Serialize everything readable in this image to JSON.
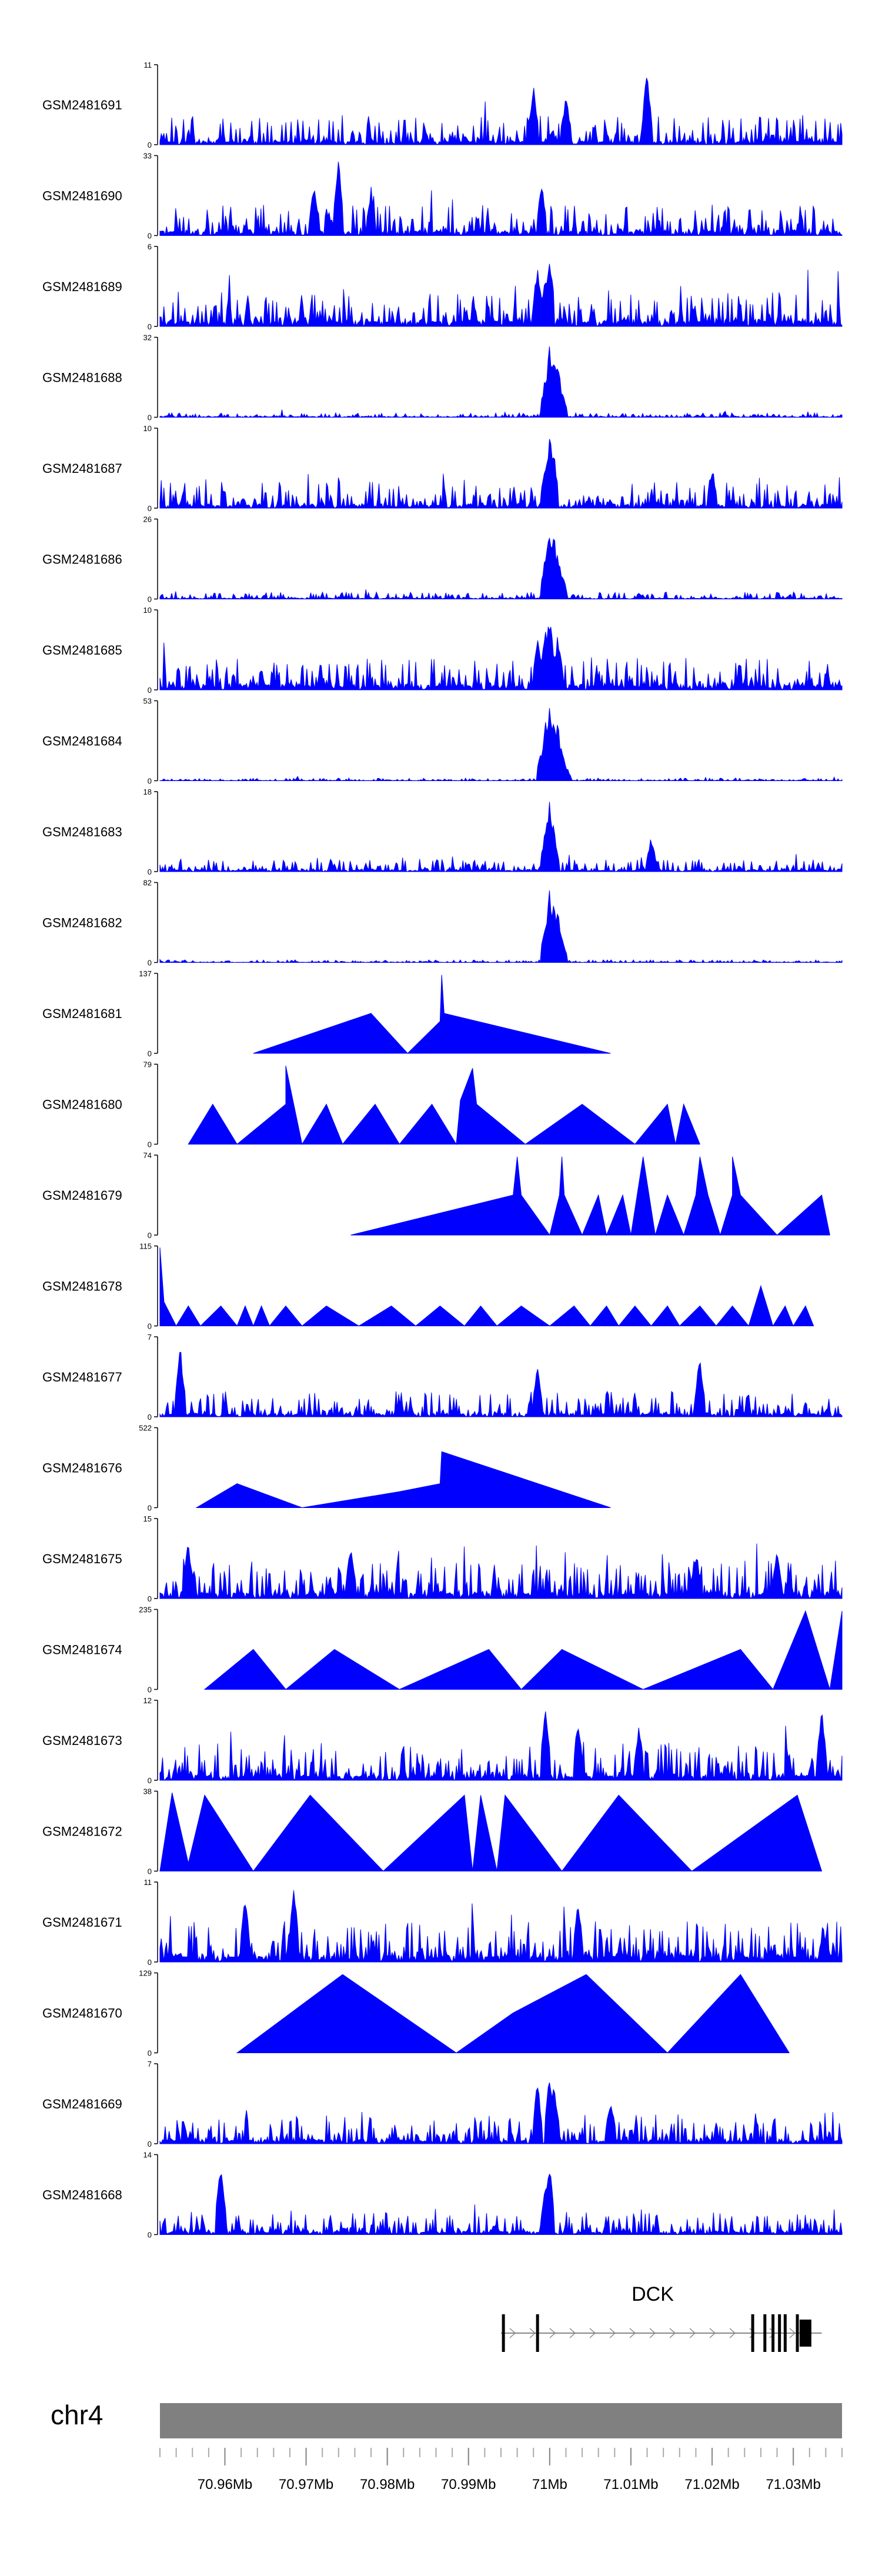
{
  "chart_data": {
    "type": "area",
    "title": "",
    "chromosome": "chr4",
    "x_unit": "Mb",
    "xlim": [
      70.952,
      71.036
    ],
    "x_tick_labels": [
      {
        "value": 70.96,
        "label": "70.96Mb"
      },
      {
        "value": 70.97,
        "label": "70.97Mb"
      },
      {
        "value": 70.98,
        "label": "70.98Mb"
      },
      {
        "value": 70.99,
        "label": "70.99Mb"
      },
      {
        "value": 71.0,
        "label": "71Mb"
      },
      {
        "value": 71.01,
        "label": "71.01Mb"
      },
      {
        "value": 71.02,
        "label": "71.02Mb"
      },
      {
        "value": 71.03,
        "label": "71.03Mb"
      }
    ],
    "fill_color": "#0000ff",
    "ideogram_color": "#808080",
    "gene": {
      "name": "DCK",
      "start": 70.994,
      "end": 71.0335,
      "strand": "+",
      "exons": [
        70.9943,
        70.9985,
        71.025,
        71.0265,
        71.0275,
        71.0283,
        71.029,
        71.0305,
        71.0315
      ]
    },
    "series": [
      {
        "name": "GSM2481691",
        "ymax": "11",
        "mode": "dense",
        "base": 0.14,
        "spread": 0.32,
        "spikes": [
          [
            70.998,
            0.75
          ],
          [
            71.002,
            0.68
          ],
          [
            71.012,
            1.0
          ]
        ]
      },
      {
        "name": "GSM2481690",
        "ymax": "33",
        "mode": "dense",
        "base": 0.18,
        "spread": 0.34,
        "spikes": [
          [
            70.971,
            0.72
          ],
          [
            70.974,
            1.0
          ],
          [
            70.978,
            0.62
          ],
          [
            70.999,
            0.68
          ]
        ]
      },
      {
        "name": "GSM2481689",
        "ymax": "6",
        "mode": "dense",
        "base": 0.22,
        "spread": 0.38,
        "spikes": [
          [
            70.9985,
            0.8
          ],
          [
            71.0,
            1.0
          ],
          [
            70.9995,
            0.7
          ]
        ]
      },
      {
        "name": "GSM2481688",
        "ymax": "32",
        "mode": "dense",
        "base": 0.02,
        "spread": 0.05,
        "spikes": [
          [
            70.9995,
            0.55
          ],
          [
            71.0,
            0.98
          ],
          [
            71.0005,
            0.9
          ],
          [
            71.001,
            0.7
          ],
          [
            71.0015,
            0.35
          ]
        ]
      },
      {
        "name": "GSM2481687",
        "ymax": "10",
        "mode": "dense",
        "base": 0.12,
        "spread": 0.3,
        "spikes": [
          [
            70.9995,
            0.6
          ],
          [
            71.0,
            1.0
          ],
          [
            71.0005,
            0.75
          ],
          [
            71.02,
            0.55
          ]
        ]
      },
      {
        "name": "GSM2481686",
        "ymax": "26",
        "mode": "dense",
        "base": 0.03,
        "spread": 0.08,
        "spikes": [
          [
            70.9995,
            0.6
          ],
          [
            71.0,
            0.98
          ],
          [
            71.0005,
            0.85
          ],
          [
            71.001,
            0.6
          ],
          [
            71.0015,
            0.35
          ]
        ]
      },
      {
        "name": "GSM2481685",
        "ymax": "10",
        "mode": "dense",
        "base": 0.2,
        "spread": 0.35,
        "spikes": [
          [
            70.9985,
            0.7
          ],
          [
            70.9995,
            0.85
          ],
          [
            71.0,
            1.0
          ],
          [
            71.001,
            0.75
          ]
        ]
      },
      {
        "name": "GSM2481684",
        "ymax": "53",
        "mode": "dense",
        "base": 0.01,
        "spread": 0.03,
        "spikes": [
          [
            70.999,
            0.4
          ],
          [
            70.9995,
            0.75
          ],
          [
            71.0,
            0.98
          ],
          [
            71.0005,
            0.92
          ],
          [
            71.001,
            0.75
          ],
          [
            71.0015,
            0.45
          ],
          [
            71.002,
            0.2
          ]
        ]
      },
      {
        "name": "GSM2481683",
        "ymax": "18",
        "mode": "dense",
        "base": 0.06,
        "spread": 0.14,
        "spikes": [
          [
            70.9995,
            0.55
          ],
          [
            71.0,
            1.0
          ],
          [
            71.0005,
            0.6
          ],
          [
            71.0125,
            0.45
          ]
        ]
      },
      {
        "name": "GSM2481682",
        "ymax": "82",
        "mode": "dense",
        "base": 0.01,
        "spread": 0.03,
        "spikes": [
          [
            70.9995,
            0.55
          ],
          [
            71.0,
            0.98
          ],
          [
            71.0005,
            0.9
          ],
          [
            71.001,
            0.65
          ],
          [
            71.0015,
            0.35
          ]
        ]
      },
      {
        "name": "GSM2481681",
        "ymax": "137",
        "mode": "sparse",
        "points": [
          [
            70.9635,
            0
          ],
          [
            70.978,
            0.5
          ],
          [
            70.9825,
            0.0
          ],
          [
            70.9865,
            0.4
          ],
          [
            70.9867,
            0.98
          ],
          [
            70.987,
            0.5
          ],
          [
            71.0075,
            0.0
          ]
        ]
      },
      {
        "name": "GSM2481680",
        "ymax": "79",
        "mode": "sparse",
        "points": [
          [
            70.9555,
            0
          ],
          [
            70.9585,
            0.5
          ],
          [
            70.9615,
            0
          ],
          [
            70.9675,
            0.5
          ],
          [
            70.9675,
            0.98
          ],
          [
            70.9695,
            0
          ],
          [
            70.9725,
            0.5
          ],
          [
            70.9745,
            0
          ],
          [
            70.9785,
            0.5
          ],
          [
            70.9815,
            0
          ],
          [
            70.9855,
            0.5
          ],
          [
            70.9885,
            0
          ],
          [
            70.989,
            0.55
          ],
          [
            70.9905,
            0.95
          ],
          [
            70.991,
            0.5
          ],
          [
            70.997,
            0
          ],
          [
            71.004,
            0.5
          ],
          [
            71.0105,
            0
          ],
          [
            71.0145,
            0.5
          ],
          [
            71.0155,
            0
          ],
          [
            71.0165,
            0.5
          ],
          [
            71.0185,
            0
          ]
        ]
      },
      {
        "name": "GSM2481679",
        "ymax": "74",
        "mode": "sparse",
        "points": [
          [
            70.9755,
            0
          ],
          [
            70.9955,
            0.5
          ],
          [
            70.996,
            0.98
          ],
          [
            70.9965,
            0.5
          ],
          [
            71.0,
            0
          ],
          [
            71.0012,
            0.5
          ],
          [
            71.0015,
            0.98
          ],
          [
            71.0018,
            0.5
          ],
          [
            71.004,
            0
          ],
          [
            71.006,
            0.5
          ],
          [
            71.007,
            0
          ],
          [
            71.009,
            0.5
          ],
          [
            71.01,
            0
          ],
          [
            71.0115,
            0.98
          ],
          [
            71.013,
            0
          ],
          [
            71.0145,
            0.5
          ],
          [
            71.0165,
            0
          ],
          [
            71.018,
            0.5
          ],
          [
            71.0185,
            0.98
          ],
          [
            71.0195,
            0.5
          ],
          [
            71.021,
            0
          ],
          [
            71.0225,
            0.5
          ],
          [
            71.0225,
            0.98
          ],
          [
            71.0235,
            0.5
          ],
          [
            71.028,
            0
          ],
          [
            71.0335,
            0.5
          ],
          [
            71.0345,
            0
          ]
        ]
      },
      {
        "name": "GSM2481678",
        "ymax": "115",
        "mode": "sparse",
        "points": [
          [
            70.952,
            0.98
          ],
          [
            70.9525,
            0.3
          ],
          [
            70.954,
            0
          ],
          [
            70.9555,
            0.25
          ],
          [
            70.957,
            0
          ],
          [
            70.9595,
            0.25
          ],
          [
            70.9615,
            0
          ],
          [
            70.9625,
            0.25
          ],
          [
            70.9635,
            0
          ],
          [
            70.9645,
            0.25
          ],
          [
            70.9655,
            0
          ],
          [
            70.9675,
            0.25
          ],
          [
            70.9695,
            0
          ],
          [
            70.9725,
            0.25
          ],
          [
            70.9765,
            0
          ],
          [
            70.9805,
            0.25
          ],
          [
            70.9835,
            0
          ],
          [
            70.9865,
            0.25
          ],
          [
            70.9895,
            0
          ],
          [
            70.9915,
            0.25
          ],
          [
            70.9935,
            0
          ],
          [
            70.9965,
            0.25
          ],
          [
            71.0,
            0
          ],
          [
            71.003,
            0.25
          ],
          [
            71.005,
            0
          ],
          [
            71.007,
            0.25
          ],
          [
            71.0085,
            0
          ],
          [
            71.0105,
            0.25
          ],
          [
            71.0125,
            0
          ],
          [
            71.0145,
            0.25
          ],
          [
            71.016,
            0
          ],
          [
            71.0185,
            0.25
          ],
          [
            71.0205,
            0
          ],
          [
            71.0225,
            0.25
          ],
          [
            71.0245,
            0
          ],
          [
            71.026,
            0.5
          ],
          [
            71.0275,
            0
          ],
          [
            71.029,
            0.25
          ],
          [
            71.03,
            0
          ],
          [
            71.0315,
            0.25
          ],
          [
            71.0325,
            0
          ]
        ]
      },
      {
        "name": "GSM2481677",
        "ymax": "7",
        "mode": "dense",
        "base": 0.12,
        "spread": 0.3,
        "spikes": [
          [
            70.9545,
            0.98
          ],
          [
            70.9985,
            0.7
          ],
          [
            71.0185,
            0.8
          ]
        ]
      },
      {
        "name": "GSM2481676",
        "ymax": "522",
        "mode": "sparse",
        "points": [
          [
            70.9565,
            0
          ],
          [
            70.9615,
            0.3
          ],
          [
            70.9695,
            0
          ],
          [
            70.9815,
            0.2
          ],
          [
            70.9865,
            0.3
          ],
          [
            70.9867,
            0.7
          ],
          [
            71.0075,
            0
          ]
        ]
      },
      {
        "name": "GSM2481675",
        "ymax": "15",
        "mode": "dense",
        "base": 0.22,
        "spread": 0.42,
        "spikes": [
          [
            70.9555,
            0.75
          ],
          [
            70.9755,
            0.7
          ],
          [
            71.018,
            0.65
          ],
          [
            71.028,
            0.6
          ]
        ]
      },
      {
        "name": "GSM2481674",
        "ymax": "235",
        "mode": "sparse",
        "points": [
          [
            70.9575,
            0
          ],
          [
            70.9635,
            0.5
          ],
          [
            70.9675,
            0
          ],
          [
            70.9735,
            0.5
          ],
          [
            70.9815,
            0
          ],
          [
            70.9925,
            0.5
          ],
          [
            70.9965,
            0
          ],
          [
            71.0015,
            0.5
          ],
          [
            71.0115,
            0
          ],
          [
            71.0235,
            0.5
          ],
          [
            71.0275,
            0
          ],
          [
            71.0315,
            0.98
          ],
          [
            71.0345,
            0
          ],
          [
            71.036,
            0.98
          ]
        ]
      },
      {
        "name": "GSM2481673",
        "ymax": "12",
        "mode": "dense",
        "base": 0.18,
        "spread": 0.42,
        "spikes": [
          [
            70.9995,
            0.98
          ],
          [
            71.0035,
            0.8
          ],
          [
            71.011,
            0.7
          ],
          [
            71.0335,
            0.95
          ]
        ]
      },
      {
        "name": "GSM2481672",
        "ymax": "38",
        "mode": "sparse",
        "points": [
          [
            70.952,
            0
          ],
          [
            70.9535,
            0.98
          ],
          [
            70.9555,
            0.1
          ],
          [
            70.9575,
            0.95
          ],
          [
            70.9635,
            0
          ],
          [
            70.9705,
            0.95
          ],
          [
            70.9795,
            0
          ],
          [
            70.9895,
            0.95
          ],
          [
            70.9905,
            0
          ],
          [
            70.9915,
            0.95
          ],
          [
            70.9935,
            0
          ],
          [
            70.9945,
            0.95
          ],
          [
            71.0015,
            0
          ],
          [
            71.0085,
            0.95
          ],
          [
            71.0175,
            0
          ],
          [
            71.0305,
            0.95
          ],
          [
            71.0335,
            0
          ]
        ]
      },
      {
        "name": "GSM2481671",
        "ymax": "11",
        "mode": "dense",
        "base": 0.25,
        "spread": 0.45,
        "spikes": [
          [
            70.9625,
            0.85
          ],
          [
            70.9685,
            0.95
          ],
          [
            71.0035,
            0.8
          ]
        ]
      },
      {
        "name": "GSM2481670",
        "ymax": "129",
        "mode": "sparse",
        "points": [
          [
            70.9615,
            0
          ],
          [
            70.9745,
            0.98
          ],
          [
            70.9885,
            0
          ],
          [
            70.9955,
            0.5
          ],
          [
            71.0045,
            0.98
          ],
          [
            71.0145,
            0
          ],
          [
            71.0235,
            0.98
          ],
          [
            71.0295,
            0
          ]
        ]
      },
      {
        "name": "GSM2481669",
        "ymax": "7",
        "mode": "dense",
        "base": 0.14,
        "spread": 0.34,
        "spikes": [
          [
            70.9985,
            0.8
          ],
          [
            71.0,
            0.98
          ],
          [
            71.0005,
            0.85
          ],
          [
            71.0075,
            0.6
          ]
        ]
      },
      {
        "name": "GSM2481668",
        "ymax": "14",
        "mode": "dense",
        "base": 0.1,
        "spread": 0.26,
        "spikes": [
          [
            70.9595,
            0.98
          ],
          [
            71.0,
            0.95
          ],
          [
            70.9995,
            0.7
          ]
        ]
      }
    ]
  }
}
